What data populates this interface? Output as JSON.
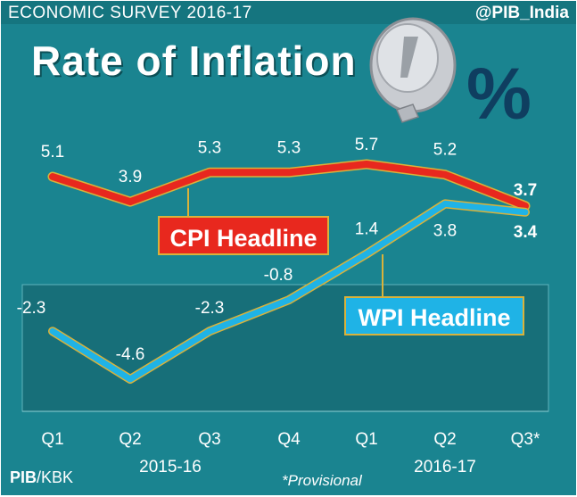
{
  "header": {
    "survey": "ECONOMIC SURVEY 2016-17",
    "handle": "@PIB_India",
    "title": "Rate of Inflation",
    "percent_symbol": "%"
  },
  "footer": {
    "source_org": "PIB",
    "source_sep": "/KBK",
    "note": "*Provisional"
  },
  "colors": {
    "background": "#1a8490",
    "cpi": "#e8281e",
    "wpi": "#1fb3e6",
    "outline": "#d9b23a"
  },
  "chart_data": {
    "type": "line",
    "title": "Rate of Inflation",
    "categories": [
      "Q1",
      "Q2",
      "Q3",
      "Q4",
      "Q1",
      "Q2",
      "Q3*"
    ],
    "groups": [
      {
        "label": "2015-16",
        "categories": [
          "Q1",
          "Q2",
          "Q3",
          "Q4"
        ]
      },
      {
        "label": "2016-17",
        "categories": [
          "Q1",
          "Q2",
          "Q3*"
        ]
      }
    ],
    "series": [
      {
        "name": "CPI Headline",
        "values": [
          5.1,
          3.9,
          5.3,
          5.3,
          5.7,
          5.2,
          3.7
        ],
        "labels": [
          "5.1",
          "3.9",
          "5.3",
          "5.3",
          "5.7",
          "5.2",
          "3.7"
        ]
      },
      {
        "name": "WPI Headline",
        "values": [
          -2.3,
          -4.6,
          -2.3,
          -0.8,
          1.4,
          3.8,
          3.4
        ],
        "labels": [
          "-2.3",
          "-4.6",
          "-2.3",
          "-0.8",
          "1.4",
          "3.8",
          "3.4"
        ]
      }
    ],
    "ylim": [
      -5,
      6
    ],
    "grid": false
  }
}
